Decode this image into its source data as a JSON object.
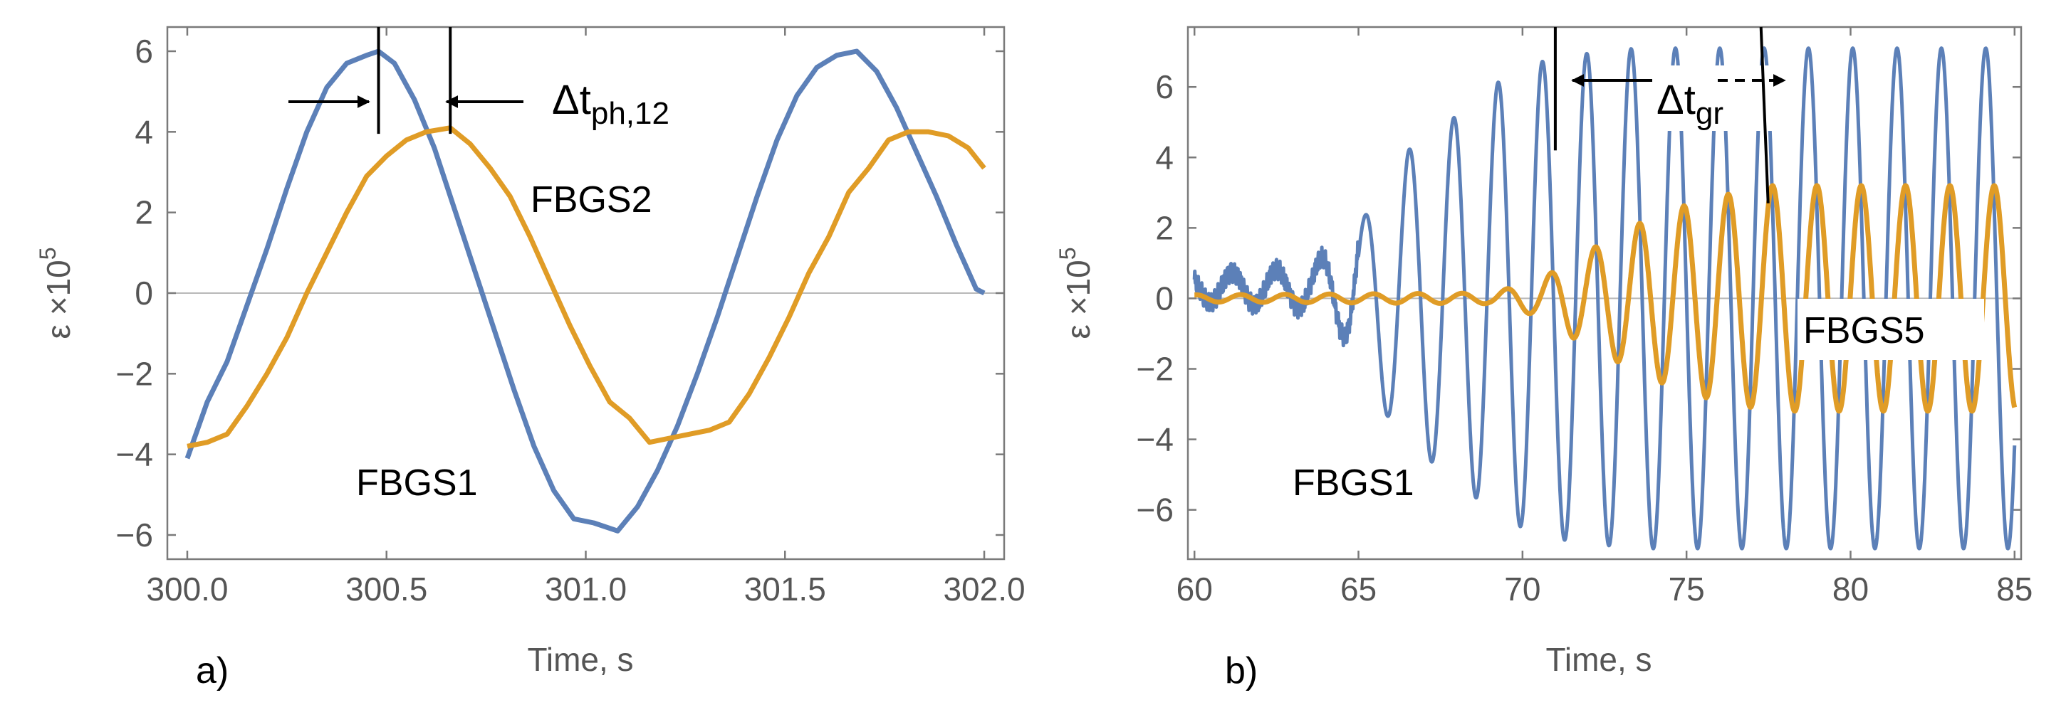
{
  "colors": {
    "fbgs1": "#5c80b8",
    "fbgs2": "#e09c26",
    "frame": "#7a7a7a",
    "zero": "#b8b8b8",
    "annot": "#000000"
  },
  "chart_data": [
    {
      "type": "line",
      "panel_label": "a)",
      "xlabel": "Time, s",
      "ylabel": "ε ×10",
      "ylabel_exp": "5",
      "xlim": [
        299.95,
        302.05
      ],
      "ylim": [
        -6.6,
        6.6
      ],
      "xticks": [
        300.0,
        300.5,
        301.0,
        301.5,
        302.0
      ],
      "xtick_labels": [
        "300.0",
        "300.5",
        "301.0",
        "301.5",
        "302.0"
      ],
      "yticks": [
        6,
        4,
        2,
        0,
        -2,
        -4,
        -6
      ],
      "ytick_labels": [
        "6",
        "4",
        "2",
        "0",
        "−2",
        "−4",
        "−6"
      ],
      "annotations": {
        "phase_delta": "Δt",
        "phase_sub": "ph,12",
        "fbgs1_label": "FBGS1",
        "fbgs2_label": "FBGS2",
        "marker_x": [
          300.48,
          300.66
        ]
      },
      "series": [
        {
          "name": "FBGS1",
          "x": [
            300.0,
            300.05,
            300.1,
            300.15,
            300.2,
            300.25,
            300.3,
            300.35,
            300.4,
            300.45,
            300.48,
            300.52,
            300.57,
            300.62,
            300.67,
            300.72,
            300.77,
            300.82,
            300.87,
            300.92,
            300.97,
            301.02,
            301.08,
            301.13,
            301.18,
            301.23,
            301.28,
            301.33,
            301.38,
            301.43,
            301.48,
            301.53,
            301.58,
            301.63,
            301.68,
            301.73,
            301.78,
            301.83,
            301.88,
            301.93,
            301.98,
            302.0
          ],
          "values": [
            -4.1,
            -2.7,
            -1.7,
            -0.3,
            1.1,
            2.6,
            4.0,
            5.1,
            5.7,
            5.9,
            6.0,
            5.7,
            4.8,
            3.6,
            2.1,
            0.6,
            -0.9,
            -2.4,
            -3.8,
            -4.9,
            -5.6,
            -5.7,
            -5.9,
            -5.3,
            -4.4,
            -3.3,
            -2.0,
            -0.6,
            0.9,
            2.4,
            3.8,
            4.9,
            5.6,
            5.9,
            6.0,
            5.5,
            4.6,
            3.5,
            2.4,
            1.2,
            0.1,
            0.0
          ]
        },
        {
          "name": "FBGS2",
          "x": [
            300.0,
            300.05,
            300.1,
            300.15,
            300.2,
            300.25,
            300.3,
            300.35,
            300.4,
            300.45,
            300.5,
            300.55,
            300.6,
            300.66,
            300.71,
            300.76,
            300.81,
            300.86,
            300.91,
            300.96,
            301.01,
            301.06,
            301.11,
            301.16,
            301.21,
            301.26,
            301.31,
            301.36,
            301.41,
            301.46,
            301.51,
            301.56,
            301.61,
            301.66,
            301.71,
            301.76,
            301.81,
            301.86,
            301.91,
            301.96,
            302.0
          ],
          "values": [
            -3.8,
            -3.7,
            -3.5,
            -2.8,
            -2.0,
            -1.1,
            0.0,
            1.0,
            2.0,
            2.9,
            3.4,
            3.8,
            4.0,
            4.1,
            3.7,
            3.1,
            2.4,
            1.4,
            0.3,
            -0.8,
            -1.8,
            -2.7,
            -3.1,
            -3.7,
            -3.6,
            -3.5,
            -3.4,
            -3.2,
            -2.5,
            -1.6,
            -0.6,
            0.5,
            1.4,
            2.5,
            3.1,
            3.8,
            4.0,
            4.0,
            3.9,
            3.6,
            3.1
          ]
        }
      ]
    },
    {
      "type": "line",
      "panel_label": "b)",
      "xlabel": "Time, s",
      "ylabel": "ε ×10",
      "ylabel_exp": "5",
      "xlim": [
        59.8,
        85.2
      ],
      "ylim": [
        -7.4,
        7.7
      ],
      "xticks": [
        60,
        65,
        70,
        75,
        80,
        85
      ],
      "xtick_labels": [
        "60",
        "65",
        "70",
        "75",
        "80",
        "85"
      ],
      "yticks": [
        6,
        4,
        2,
        0,
        -2,
        -4,
        -6
      ],
      "ytick_labels": [
        "6",
        "4",
        "2",
        "0",
        "−2",
        "−4",
        "−6"
      ],
      "annotations": {
        "group_delta": "Δt",
        "group_sub": "gr",
        "fbgs1_label": "FBGS1",
        "fbgs5_label": "FBGS5",
        "marker_x": [
          71.0,
          77.4
        ]
      },
      "series": [
        {
          "name": "FBGS1",
          "frequency_hz": 0.74,
          "envelope_t": [
            60,
            62,
            63.5,
            64.5,
            65.5,
            66.5,
            67.5,
            68.5,
            69.5,
            70.5,
            71.5,
            72.5,
            73.5,
            85
          ],
          "envelope_amp": [
            0.4,
            0.5,
            0.6,
            1.3,
            2.8,
            4.2,
            4.8,
            5.6,
            6.3,
            6.7,
            6.9,
            7.0,
            7.1,
            7.1
          ]
        },
        {
          "name": "FBGS5",
          "frequency_hz": 0.74,
          "envelope_t": [
            60,
            69,
            70.5,
            71.5,
            72.5,
            73.5,
            74.5,
            75.5,
            76.5,
            77.5,
            85
          ],
          "envelope_amp": [
            0.1,
            0.15,
            0.5,
            1.1,
            1.6,
            2.1,
            2.5,
            2.8,
            3.0,
            3.2,
            3.2
          ]
        }
      ]
    }
  ]
}
